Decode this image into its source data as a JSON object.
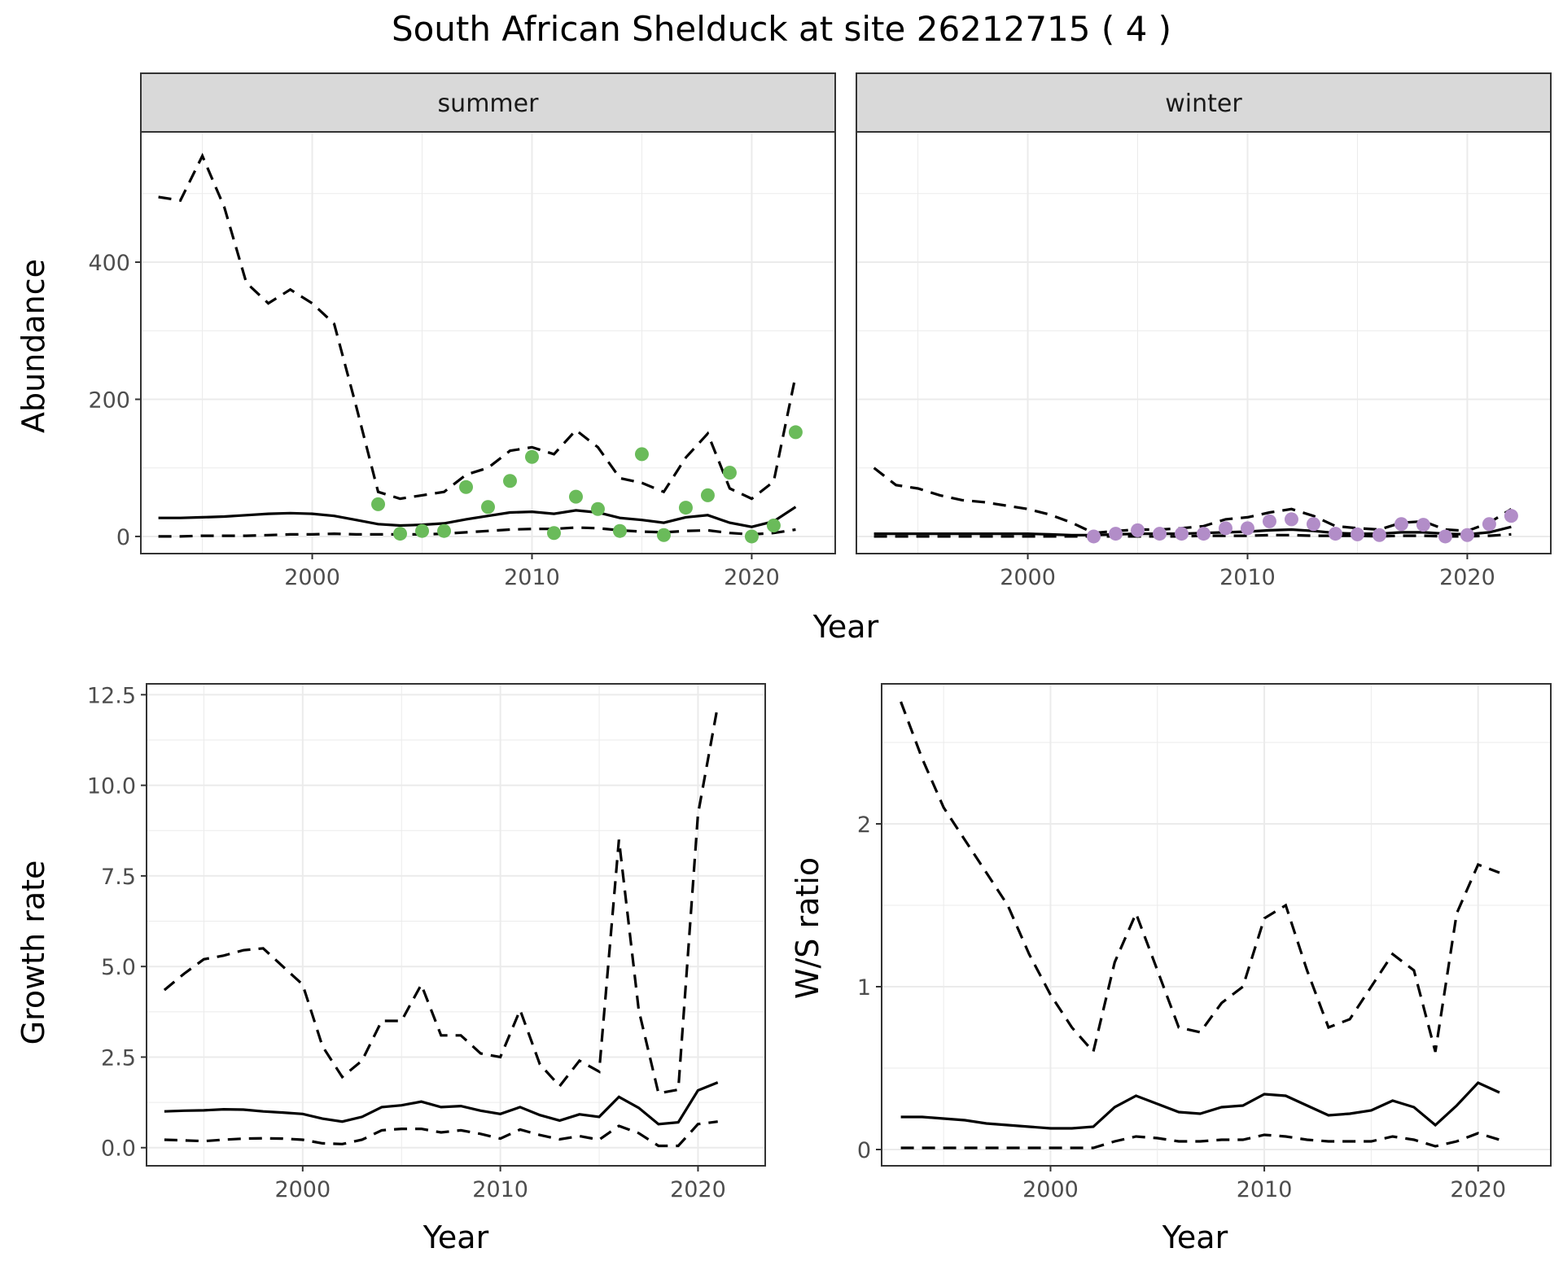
{
  "title": "South African Shelduck at site 26212715 ( 4 )",
  "colors": {
    "summer_points": "#6ABB5A",
    "winter_points": "#B28DC8",
    "lines": "#000000",
    "strip": "#D9D9D9"
  },
  "chart_data": [
    {
      "type": "line",
      "panel": "summer",
      "strip_label": "summer",
      "xlabel": "Year",
      "ylabel": "Abundance",
      "xlim": [
        1992.2,
        2023.8
      ],
      "ylim": [
        -25,
        590
      ],
      "x_ticks": [
        2000,
        2010,
        2020
      ],
      "y_ticks": [
        0,
        200,
        400
      ],
      "y_tick_labels": [
        "0",
        "200",
        "400"
      ],
      "x": [
        1993,
        1994,
        1995,
        1996,
        1997,
        1998,
        1999,
        2000,
        2001,
        2002,
        2003,
        2004,
        2005,
        2006,
        2007,
        2008,
        2009,
        2010,
        2011,
        2012,
        2013,
        2014,
        2015,
        2016,
        2017,
        2018,
        2019,
        2020,
        2021,
        2022
      ],
      "series": [
        {
          "role": "estimate",
          "style": "solid",
          "values": [
            27,
            27,
            28,
            29,
            31,
            33,
            34,
            33,
            30,
            24,
            18,
            16,
            17,
            19,
            25,
            30,
            35,
            36,
            33,
            38,
            35,
            27,
            24,
            20,
            28,
            31,
            20,
            14,
            22,
            43
          ]
        },
        {
          "role": "upper",
          "style": "dashed",
          "values": [
            495,
            490,
            555,
            480,
            370,
            340,
            360,
            340,
            310,
            190,
            65,
            55,
            60,
            65,
            90,
            100,
            125,
            130,
            120,
            155,
            130,
            85,
            78,
            65,
            115,
            150,
            70,
            55,
            80,
            235
          ]
        },
        {
          "role": "lower",
          "style": "dashed",
          "values": [
            0,
            0,
            1,
            1,
            1,
            2,
            3,
            3,
            4,
            3,
            3,
            3,
            3,
            4,
            6,
            8,
            10,
            11,
            11,
            13,
            12,
            9,
            7,
            6,
            8,
            9,
            5,
            3,
            5,
            10
          ]
        }
      ],
      "points": {
        "x": [
          2003,
          2004,
          2005,
          2006,
          2007,
          2008,
          2009,
          2010,
          2011,
          2012,
          2013,
          2014,
          2015,
          2016,
          2017,
          2018,
          2019,
          2020,
          2021,
          2022
        ],
        "y": [
          47,
          4,
          8,
          8,
          72,
          43,
          81,
          116,
          5,
          58,
          40,
          8,
          120,
          2,
          42,
          60,
          93,
          0,
          16,
          152
        ]
      }
    },
    {
      "type": "line",
      "panel": "winter",
      "strip_label": "winter",
      "xlabel": "Year",
      "ylabel": "",
      "xlim": [
        1992.2,
        2023.8
      ],
      "ylim": [
        -25,
        590
      ],
      "x_ticks": [
        2000,
        2010,
        2020
      ],
      "y_ticks": [],
      "x": [
        1993,
        1994,
        1995,
        1996,
        1997,
        1998,
        1999,
        2000,
        2001,
        2002,
        2003,
        2004,
        2005,
        2006,
        2007,
        2008,
        2009,
        2010,
        2011,
        2012,
        2013,
        2014,
        2015,
        2016,
        2017,
        2018,
        2019,
        2020,
        2021,
        2022
      ],
      "series": [
        {
          "role": "estimate",
          "style": "solid",
          "values": [
            4,
            4,
            4,
            4,
            4,
            4,
            4,
            4,
            3,
            2,
            2,
            3,
            4,
            4,
            4,
            5,
            6,
            7,
            9,
            10,
            8,
            5,
            4,
            4,
            6,
            6,
            4,
            3,
            6,
            14
          ]
        },
        {
          "role": "upper",
          "style": "dashed",
          "values": [
            100,
            75,
            70,
            60,
            53,
            50,
            45,
            40,
            32,
            20,
            5,
            8,
            10,
            10,
            12,
            15,
            25,
            28,
            35,
            40,
            30,
            15,
            12,
            10,
            20,
            22,
            10,
            8,
            20,
            40
          ]
        },
        {
          "role": "lower",
          "style": "dashed",
          "values": [
            0,
            0,
            0,
            0,
            0,
            0,
            0,
            0,
            0,
            0,
            0,
            0,
            0,
            0,
            0,
            1,
            1,
            1,
            2,
            2,
            1,
            1,
            1,
            0,
            1,
            1,
            0,
            0,
            1,
            3
          ]
        }
      ],
      "points": {
        "x": [
          2003,
          2004,
          2005,
          2006,
          2007,
          2008,
          2009,
          2010,
          2011,
          2012,
          2013,
          2014,
          2015,
          2016,
          2017,
          2018,
          2019,
          2020,
          2021,
          2022
        ],
        "y": [
          0,
          4,
          9,
          4,
          4,
          4,
          12,
          12,
          22,
          25,
          18,
          4,
          3,
          2,
          18,
          17,
          0,
          2,
          18,
          30
        ]
      }
    },
    {
      "type": "line",
      "panel": "growth",
      "xlabel": "Year",
      "ylabel": "Growth rate",
      "xlim": [
        1992.1,
        2023.4
      ],
      "ylim": [
        -0.5,
        12.8
      ],
      "x_ticks": [
        2000,
        2010,
        2020
      ],
      "y_ticks": [
        0,
        2.5,
        5,
        7.5,
        10,
        12.5
      ],
      "y_tick_labels": [
        "0.0",
        "2.5",
        "5.0",
        "7.5",
        "10.0",
        "12.5"
      ],
      "x": [
        1993,
        1994,
        1995,
        1996,
        1997,
        1998,
        1999,
        2000,
        2001,
        2002,
        2003,
        2004,
        2005,
        2006,
        2007,
        2008,
        2009,
        2010,
        2011,
        2012,
        2013,
        2014,
        2015,
        2016,
        2017,
        2018,
        2019,
        2020,
        2021
      ],
      "series": [
        {
          "role": "estimate",
          "style": "solid",
          "values": [
            1.0,
            1.02,
            1.03,
            1.06,
            1.05,
            1.0,
            0.97,
            0.93,
            0.8,
            0.72,
            0.85,
            1.12,
            1.17,
            1.27,
            1.12,
            1.15,
            1.02,
            0.93,
            1.12,
            0.9,
            0.75,
            0.92,
            0.85,
            1.4,
            1.1,
            0.65,
            0.7,
            1.58,
            1.8
          ]
        },
        {
          "role": "upper",
          "style": "dashed",
          "values": [
            4.35,
            4.8,
            5.2,
            5.3,
            5.45,
            5.5,
            5.0,
            4.5,
            2.8,
            1.95,
            2.4,
            3.5,
            3.5,
            4.5,
            3.1,
            3.1,
            2.6,
            2.5,
            3.8,
            2.3,
            1.7,
            2.4,
            2.1,
            8.5,
            3.8,
            1.5,
            1.6,
            9.2,
            12.2
          ]
        },
        {
          "role": "lower",
          "style": "dashed",
          "values": [
            0.22,
            0.2,
            0.18,
            0.22,
            0.25,
            0.26,
            0.25,
            0.22,
            0.12,
            0.1,
            0.22,
            0.48,
            0.52,
            0.52,
            0.42,
            0.48,
            0.38,
            0.25,
            0.5,
            0.35,
            0.23,
            0.32,
            0.22,
            0.6,
            0.4,
            0.05,
            0.05,
            0.65,
            0.72
          ]
        }
      ]
    },
    {
      "type": "line",
      "panel": "ws_ratio",
      "xlabel": "Year",
      "ylabel": "W/S ratio",
      "xlim": [
        1992.1,
        2023.4
      ],
      "ylim": [
        -0.1,
        2.86
      ],
      "x_ticks": [
        2000,
        2010,
        2020
      ],
      "y_ticks": [
        0,
        1,
        2
      ],
      "y_tick_labels": [
        "0",
        "1",
        "2"
      ],
      "x": [
        1993,
        1994,
        1995,
        1996,
        1997,
        1998,
        1999,
        2000,
        2001,
        2002,
        2003,
        2004,
        2005,
        2006,
        2007,
        2008,
        2009,
        2010,
        2011,
        2012,
        2013,
        2014,
        2015,
        2016,
        2017,
        2018,
        2019,
        2020,
        2021
      ],
      "series": [
        {
          "role": "estimate",
          "style": "solid",
          "values": [
            0.2,
            0.2,
            0.19,
            0.18,
            0.16,
            0.15,
            0.14,
            0.13,
            0.13,
            0.14,
            0.26,
            0.33,
            0.28,
            0.23,
            0.22,
            0.26,
            0.27,
            0.34,
            0.33,
            0.27,
            0.21,
            0.22,
            0.24,
            0.3,
            0.26,
            0.15,
            0.27,
            0.41,
            0.35
          ]
        },
        {
          "role": "upper",
          "style": "dashed",
          "values": [
            2.75,
            2.4,
            2.1,
            1.9,
            1.7,
            1.5,
            1.2,
            0.95,
            0.75,
            0.6,
            1.15,
            1.45,
            1.1,
            0.75,
            0.72,
            0.9,
            1.0,
            1.42,
            1.5,
            1.1,
            0.75,
            0.8,
            1.0,
            1.2,
            1.1,
            0.6,
            1.45,
            1.75,
            1.7
          ]
        },
        {
          "role": "lower",
          "style": "dashed",
          "values": [
            0.01,
            0.01,
            0.01,
            0.01,
            0.01,
            0.01,
            0.01,
            0.01,
            0.01,
            0.01,
            0.05,
            0.08,
            0.07,
            0.05,
            0.05,
            0.06,
            0.06,
            0.09,
            0.08,
            0.06,
            0.05,
            0.05,
            0.05,
            0.08,
            0.06,
            0.02,
            0.05,
            0.1,
            0.06
          ]
        }
      ]
    }
  ]
}
